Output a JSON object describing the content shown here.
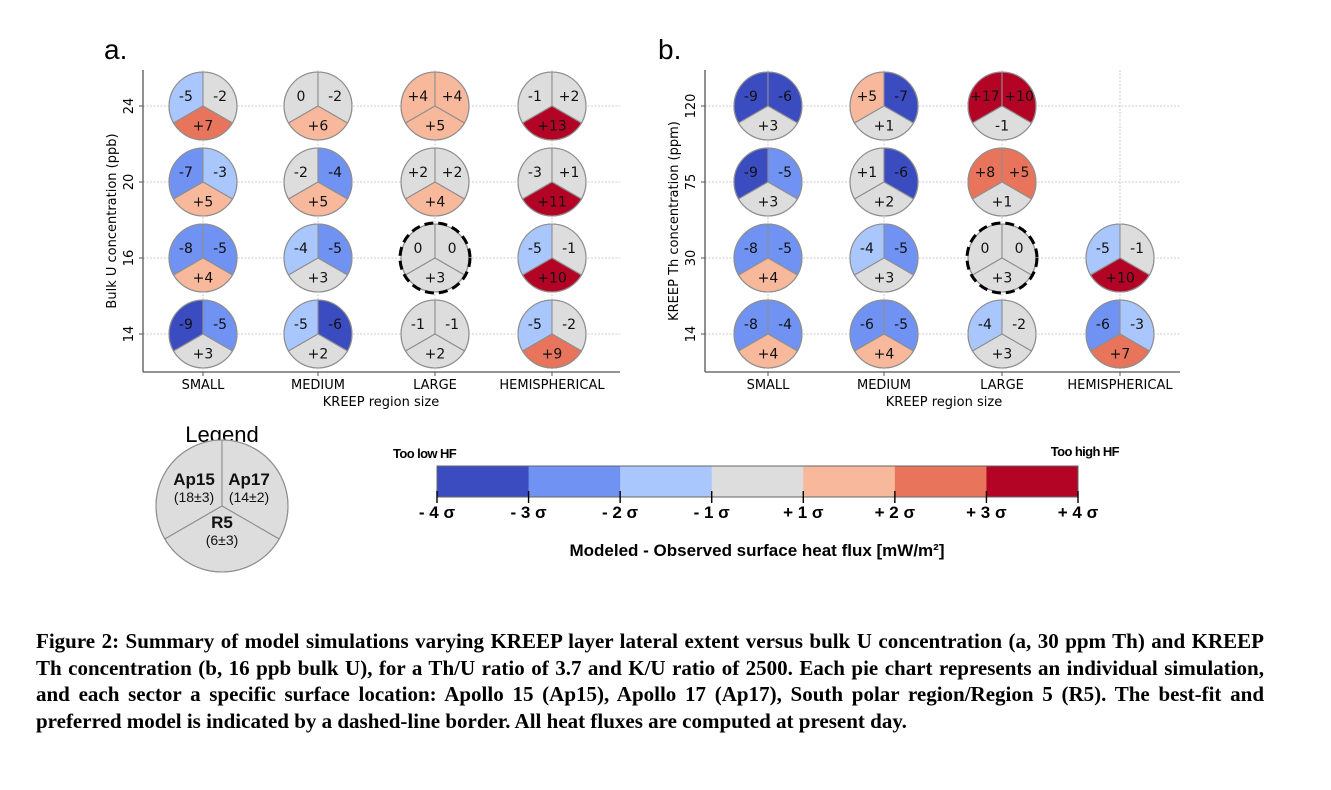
{
  "chart_data": [
    {
      "type": "pie-grid",
      "panel_label": "a.",
      "title": "",
      "xlabel": "KREEP region size",
      "ylabel": "Bulk U concentration (ppb)",
      "x_categories": [
        "SMALL",
        "MEDIUM",
        "LARGE",
        "HEMISPHERICAL"
      ],
      "y_categories": [
        "24",
        "20",
        "16",
        "14"
      ],
      "grid": true,
      "sector_order": [
        "Ap15",
        "Ap17",
        "R5"
      ],
      "cells": [
        {
          "x": "SMALL",
          "y": "24",
          "values": [
            -5,
            -2,
            7
          ],
          "labels": [
            "-5",
            "-2",
            "+7"
          ],
          "best_fit": false
        },
        {
          "x": "MEDIUM",
          "y": "24",
          "values": [
            0,
            -2,
            6
          ],
          "labels": [
            "0",
            "-2",
            "+6"
          ],
          "best_fit": false
        },
        {
          "x": "LARGE",
          "y": "24",
          "values": [
            4,
            4,
            5
          ],
          "labels": [
            "+4",
            "+4",
            "+5"
          ],
          "best_fit": false
        },
        {
          "x": "HEMISPHERICAL",
          "y": "24",
          "values": [
            -1,
            2,
            13
          ],
          "labels": [
            "-1",
            "+2",
            "+13"
          ],
          "best_fit": false
        },
        {
          "x": "SMALL",
          "y": "20",
          "values": [
            -7,
            -3,
            5
          ],
          "labels": [
            "-7",
            "-3",
            "+5"
          ],
          "best_fit": false
        },
        {
          "x": "MEDIUM",
          "y": "20",
          "values": [
            -2,
            -4,
            5
          ],
          "labels": [
            "-2",
            "-4",
            "+5"
          ],
          "best_fit": false
        },
        {
          "x": "LARGE",
          "y": "20",
          "values": [
            2,
            2,
            4
          ],
          "labels": [
            "+2",
            "+2",
            "+4"
          ],
          "best_fit": false
        },
        {
          "x": "HEMISPHERICAL",
          "y": "20",
          "values": [
            -3,
            1,
            11
          ],
          "labels": [
            "-3",
            "+1",
            "+11"
          ],
          "best_fit": false
        },
        {
          "x": "SMALL",
          "y": "16",
          "values": [
            -8,
            -5,
            4
          ],
          "labels": [
            "-8",
            "-5",
            "+4"
          ],
          "best_fit": false
        },
        {
          "x": "MEDIUM",
          "y": "16",
          "values": [
            -4,
            -5,
            3
          ],
          "labels": [
            "-4",
            "-5",
            "+3"
          ],
          "best_fit": false
        },
        {
          "x": "LARGE",
          "y": "16",
          "values": [
            0,
            0,
            3
          ],
          "labels": [
            "0",
            "0",
            "+3"
          ],
          "best_fit": true
        },
        {
          "x": "HEMISPHERICAL",
          "y": "16",
          "values": [
            -5,
            -1,
            10
          ],
          "labels": [
            "-5",
            "-1",
            "+10"
          ],
          "best_fit": false
        },
        {
          "x": "SMALL",
          "y": "14",
          "values": [
            -9,
            -5,
            3
          ],
          "labels": [
            "-9",
            "-5",
            "+3"
          ],
          "best_fit": false
        },
        {
          "x": "MEDIUM",
          "y": "14",
          "values": [
            -5,
            -6,
            2
          ],
          "labels": [
            "-5",
            "-6",
            "+2"
          ],
          "best_fit": false
        },
        {
          "x": "LARGE",
          "y": "14",
          "values": [
            -1,
            -1,
            2
          ],
          "labels": [
            "-1",
            "-1",
            "+2"
          ],
          "best_fit": false
        },
        {
          "x": "HEMISPHERICAL",
          "y": "14",
          "values": [
            -5,
            -2,
            9
          ],
          "labels": [
            "-5",
            "-2",
            "+9"
          ],
          "best_fit": false
        }
      ]
    },
    {
      "type": "pie-grid",
      "panel_label": "b.",
      "title": "",
      "xlabel": "KREEP region size",
      "ylabel": "KREEP Th concentration (ppm)",
      "x_categories": [
        "SMALL",
        "MEDIUM",
        "LARGE",
        "HEMISPHERICAL"
      ],
      "y_categories": [
        "120",
        "75",
        "30",
        "14"
      ],
      "grid": true,
      "sector_order": [
        "Ap15",
        "Ap17",
        "R5"
      ],
      "cells": [
        {
          "x": "SMALL",
          "y": "120",
          "values": [
            -9,
            -6,
            3
          ],
          "labels": [
            "-9",
            "-6",
            "+3"
          ],
          "best_fit": false
        },
        {
          "x": "MEDIUM",
          "y": "120",
          "values": [
            5,
            -7,
            1
          ],
          "labels": [
            "+5",
            "-7",
            "+1"
          ],
          "best_fit": false
        },
        {
          "x": "LARGE",
          "y": "120",
          "values": [
            17,
            10,
            -1
          ],
          "labels": [
            "+17",
            "+10",
            "-1"
          ],
          "best_fit": false
        },
        {
          "x": "SMALL",
          "y": "75",
          "values": [
            -9,
            -5,
            3
          ],
          "labels": [
            "-9",
            "-5",
            "+3"
          ],
          "best_fit": false
        },
        {
          "x": "MEDIUM",
          "y": "75",
          "values": [
            1,
            -6,
            2
          ],
          "labels": [
            "+1",
            "-6",
            "+2"
          ],
          "best_fit": false
        },
        {
          "x": "LARGE",
          "y": "75",
          "values": [
            8,
            5,
            1
          ],
          "labels": [
            "+8",
            "+5",
            "+1"
          ],
          "best_fit": false
        },
        {
          "x": "SMALL",
          "y": "30",
          "values": [
            -8,
            -5,
            4
          ],
          "labels": [
            "-8",
            "-5",
            "+4"
          ],
          "best_fit": false
        },
        {
          "x": "MEDIUM",
          "y": "30",
          "values": [
            -4,
            -5,
            3
          ],
          "labels": [
            "-4",
            "-5",
            "+3"
          ],
          "best_fit": false
        },
        {
          "x": "LARGE",
          "y": "30",
          "values": [
            0,
            0,
            3
          ],
          "labels": [
            "0",
            "0",
            "+3"
          ],
          "best_fit": true
        },
        {
          "x": "HEMISPHERICAL",
          "y": "30",
          "values": [
            -5,
            -1,
            10
          ],
          "labels": [
            "-5",
            "-1",
            "+10"
          ],
          "best_fit": false
        },
        {
          "x": "SMALL",
          "y": "14",
          "values": [
            -8,
            -4,
            4
          ],
          "labels": [
            "-8",
            "-4",
            "+4"
          ],
          "best_fit": false
        },
        {
          "x": "MEDIUM",
          "y": "14",
          "values": [
            -6,
            -5,
            4
          ],
          "labels": [
            "-6",
            "-5",
            "+4"
          ],
          "best_fit": false
        },
        {
          "x": "LARGE",
          "y": "14",
          "values": [
            -4,
            -2,
            3
          ],
          "labels": [
            "-4",
            "-2",
            "+3"
          ],
          "best_fit": false
        },
        {
          "x": "HEMISPHERICAL",
          "y": "14",
          "values": [
            -6,
            -3,
            7
          ],
          "labels": [
            "-6",
            "-3",
            "+7"
          ],
          "best_fit": false
        }
      ]
    }
  ],
  "legend": {
    "title": "Legend",
    "sites": [
      {
        "key": "Ap15",
        "name": "Ap15",
        "observed": "(18±3)",
        "sigma": 3
      },
      {
        "key": "Ap17",
        "name": "Ap17",
        "observed": "(14±2)",
        "sigma": 2
      },
      {
        "key": "R5",
        "name": "R5",
        "observed": "(6±3)",
        "sigma": 3
      }
    ]
  },
  "colorbar": {
    "low_label": "Too low HF",
    "high_label": "Too high HF",
    "ticks": [
      "- 4 σ",
      "- 3 σ",
      "- 2 σ",
      "- 1 σ",
      "+ 1 σ",
      "+ 2 σ",
      "+ 3 σ",
      "+ 4 σ"
    ],
    "bins": [
      {
        "range": "-4σ to -3σ",
        "color": "#3b4cc0"
      },
      {
        "range": "-3σ to -2σ",
        "color": "#6f92f3"
      },
      {
        "range": "-2σ to -1σ",
        "color": "#aac7fd"
      },
      {
        "range": "-1σ to +1σ",
        "color": "#dddddd"
      },
      {
        "range": "+1σ to +2σ",
        "color": "#f7b89c"
      },
      {
        "range": "+2σ to +3σ",
        "color": "#e7745b"
      },
      {
        "range": "+3σ to +4σ",
        "color": "#b40426"
      }
    ],
    "title": "Modeled - Observed surface heat flux [mW/m²]"
  },
  "caption": "Figure 2: Summary of model simulations varying KREEP layer lateral extent versus bulk U concentration (a, 30 ppm Th) and KREEP Th concentration (b, 16 ppb bulk U), for a Th/U ratio of 3.7 and K/U ratio of 2500. Each pie chart represents an individual simulation, and each sector a specific surface location: Apollo 15 (Ap15), Apollo 17 (Ap17), South polar region/Region 5 (R5). The best-fit and preferred model is indicated by a dashed-line border. All heat fluxes are computed at present day."
}
